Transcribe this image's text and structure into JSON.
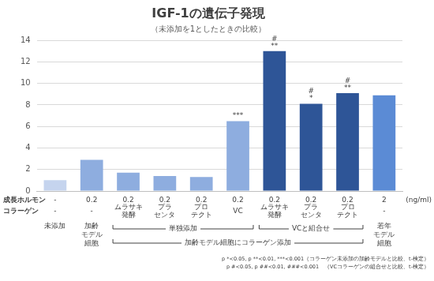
{
  "chart_data": {
    "type": "bar",
    "title": "IGF-1の遺伝子発現",
    "subtitle": "（未添加を1としたときの比較）",
    "categories": [
      null,
      null,
      null,
      null,
      null,
      null,
      null,
      null,
      null,
      null
    ],
    "values": [
      1.0,
      2.9,
      1.7,
      1.4,
      1.3,
      6.5,
      13.0,
      8.1,
      9.1,
      8.9
    ],
    "colors": [
      "#c5d4ee",
      "#8eaddf",
      "#8eaddf",
      "#8eaddf",
      "#8eaddf",
      "#8eaddf",
      "#2e5597",
      "#2e5597",
      "#2e5597",
      "#5b8bd5"
    ],
    "significance": [
      null,
      null,
      null,
      null,
      null,
      [
        "***"
      ],
      [
        "#",
        "**"
      ],
      [
        "#",
        "*"
      ],
      [
        "#",
        "**"
      ],
      null
    ],
    "ylim": [
      0,
      14
    ],
    "yticks": [
      0,
      2,
      4,
      6,
      8,
      10,
      12,
      14
    ],
    "grid": true,
    "tick_labels": "y",
    "rows": [
      {
        "label": "成長ホルモン",
        "cells": [
          "-",
          "0.2",
          "0.2",
          "0.2",
          "0.2",
          "0.2",
          "0.2",
          "0.2",
          "0.2",
          "2"
        ],
        "unit": "(ng/ml)"
      },
      {
        "label": "コラーゲン",
        "cells": [
          "-",
          "-",
          "ムラサキ\n発酵",
          "プラ\nセンタ",
          "プロ\nテクト",
          "VC",
          "ムラサキ\n発酵",
          "プラ\nセンタ",
          "プロ\nテクト",
          "-"
        ]
      }
    ],
    "sample_labels": [
      "未添加",
      "加齢\nモデル\n細胞",
      null,
      null,
      null,
      null,
      null,
      null,
      null,
      "若年\nモデル\n細胞"
    ],
    "groups": [
      {
        "label": "単独添加",
        "from": 2,
        "to": 5,
        "level": 1
      },
      {
        "label": "VCと組合せ",
        "from": 6,
        "to": 8,
        "level": 1
      },
      {
        "label": "加齢モデル細胞にコラーゲン添加",
        "from": 2,
        "to": 8,
        "level": 2
      }
    ],
    "notes": [
      "p *<0.05, p **<0.01, ***<0.001（コラーゲン未添加の加齢モデルと比較、t-検定）",
      "p #<0.05, p ##<0.01, ###<0.001　（VCコラーゲンの組合せと比較、t-検定）"
    ]
  }
}
